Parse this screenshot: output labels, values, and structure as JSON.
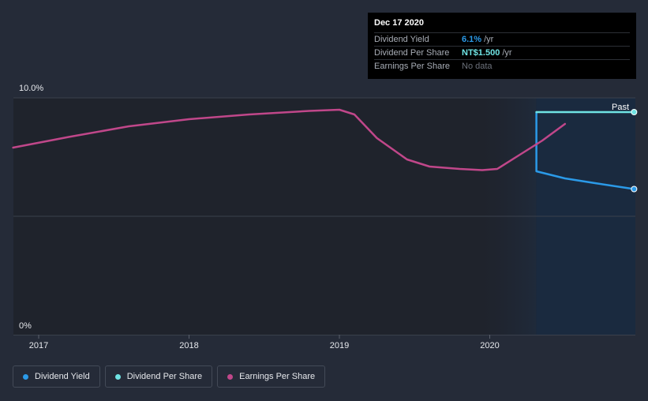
{
  "colors": {
    "background": "#252b38",
    "plot_bg": "#1f232c",
    "forecast_bg": "#1a2a3f",
    "dividend_yield": "#2b9ae8",
    "dividend_per_share": "#6fe3e3",
    "earnings_per_share": "#c0478a"
  },
  "tooltip": {
    "date": "Dec 17 2020",
    "rows": [
      {
        "key": "Dividend Yield",
        "value": "6.1%",
        "unit": "/yr"
      },
      {
        "key": "Dividend Per Share",
        "value": "NT$1.500",
        "unit": "/yr"
      },
      {
        "key": "Earnings Per Share",
        "value": "No data",
        "unit": ""
      }
    ]
  },
  "chart_data": {
    "type": "line",
    "title": "",
    "xlabel": "",
    "ylabel": "",
    "ylim": [
      0,
      10
    ],
    "y_tick_labels": [
      "10.0%",
      "0%"
    ],
    "x_ticks": [
      2017,
      2018,
      2019,
      2020
    ],
    "x_tick_labels": [
      "2017",
      "2018",
      "2019",
      "2020"
    ],
    "xlim": [
      2016.83,
      2020.96
    ],
    "past_label": "Past",
    "grid": true,
    "legend_position": "bottom-left",
    "series": [
      {
        "name": "Dividend Yield",
        "color": "#2b9ae8",
        "points": [
          [
            2020.31,
            9.4
          ],
          [
            2020.31,
            6.9
          ],
          [
            2020.5,
            6.6
          ],
          [
            2020.7,
            6.4
          ],
          [
            2020.96,
            6.15
          ]
        ]
      },
      {
        "name": "Dividend Per Share",
        "color": "#6fe3e3",
        "points": [
          [
            2020.31,
            9.4
          ],
          [
            2020.96,
            9.4
          ]
        ]
      },
      {
        "name": "Earnings Per Share",
        "color": "#c0478a",
        "points": [
          [
            2016.83,
            7.9
          ],
          [
            2017.2,
            8.35
          ],
          [
            2017.6,
            8.8
          ],
          [
            2018.0,
            9.1
          ],
          [
            2018.4,
            9.3
          ],
          [
            2018.8,
            9.45
          ],
          [
            2019.0,
            9.5
          ],
          [
            2019.1,
            9.3
          ],
          [
            2019.25,
            8.3
          ],
          [
            2019.45,
            7.4
          ],
          [
            2019.6,
            7.1
          ],
          [
            2019.8,
            7.0
          ],
          [
            2019.95,
            6.95
          ],
          [
            2020.05,
            7.0
          ],
          [
            2020.2,
            7.6
          ],
          [
            2020.35,
            8.2
          ],
          [
            2020.5,
            8.9
          ]
        ]
      }
    ]
  },
  "legend": [
    {
      "label": "Dividend Yield",
      "color": "#2b9ae8"
    },
    {
      "label": "Dividend Per Share",
      "color": "#6fe3e3"
    },
    {
      "label": "Earnings Per Share",
      "color": "#c0478a"
    }
  ]
}
